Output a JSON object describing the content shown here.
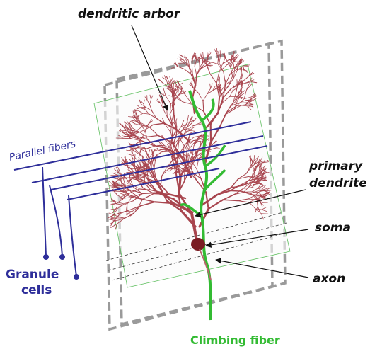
{
  "labels": {
    "dendritic_arbor": "dendritic arbor",
    "parallel_fibers": "Parallel fibers",
    "primary_dendrite": [
      "primary",
      "dendrite"
    ],
    "soma": "soma",
    "axon": "axon",
    "granule_cells": [
      "Granule",
      "cells"
    ],
    "climbing_fiber": "Climbing fiber"
  }
}
